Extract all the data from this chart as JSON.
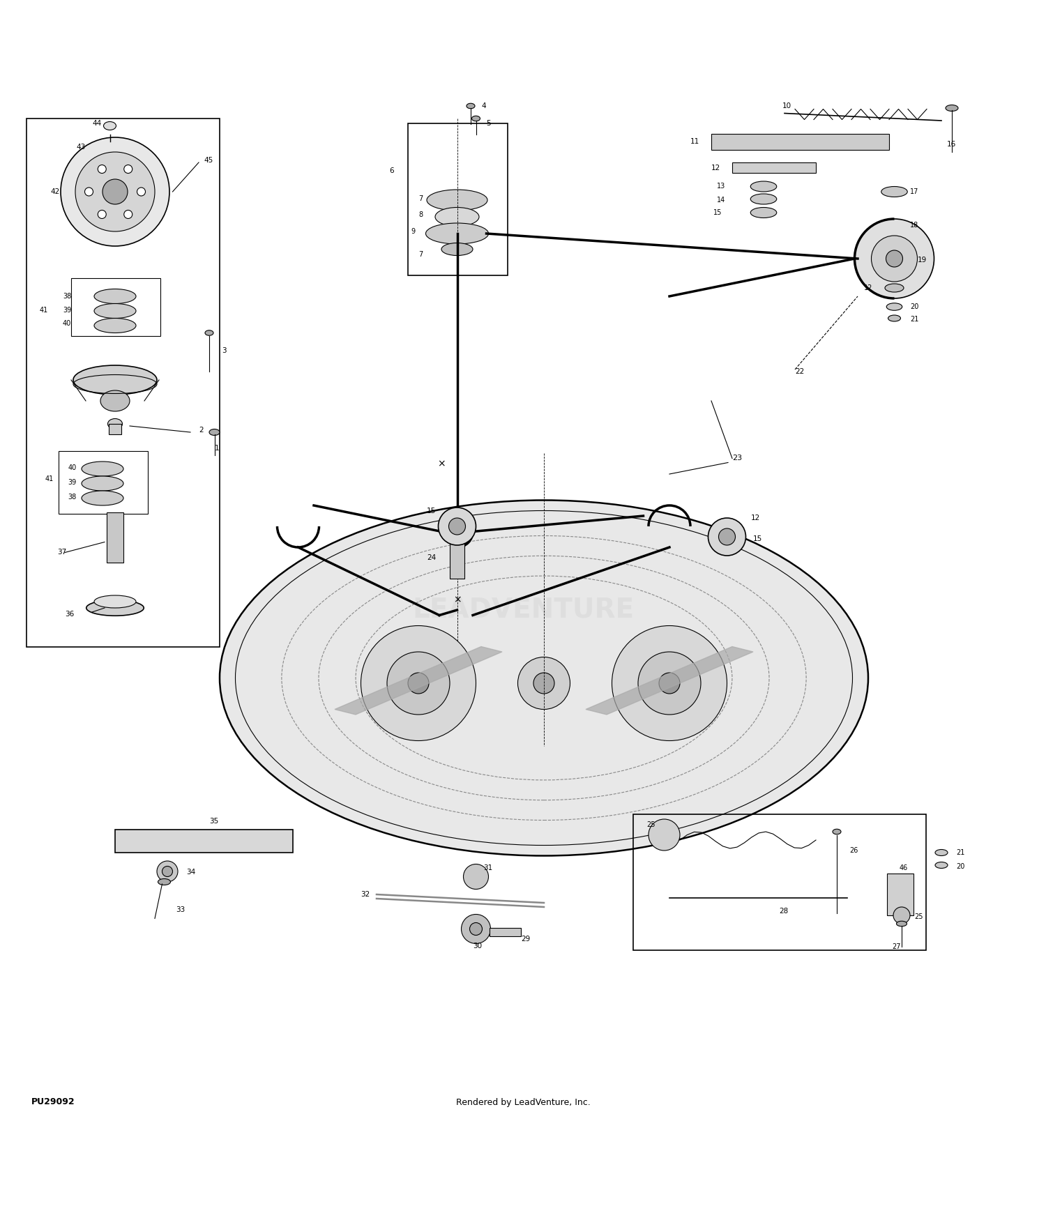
{
  "bg_color": "#ffffff",
  "line_color": "#000000",
  "part_number_text": "PU29092",
  "footer_text": "Rendered by LeadVenture, Inc."
}
